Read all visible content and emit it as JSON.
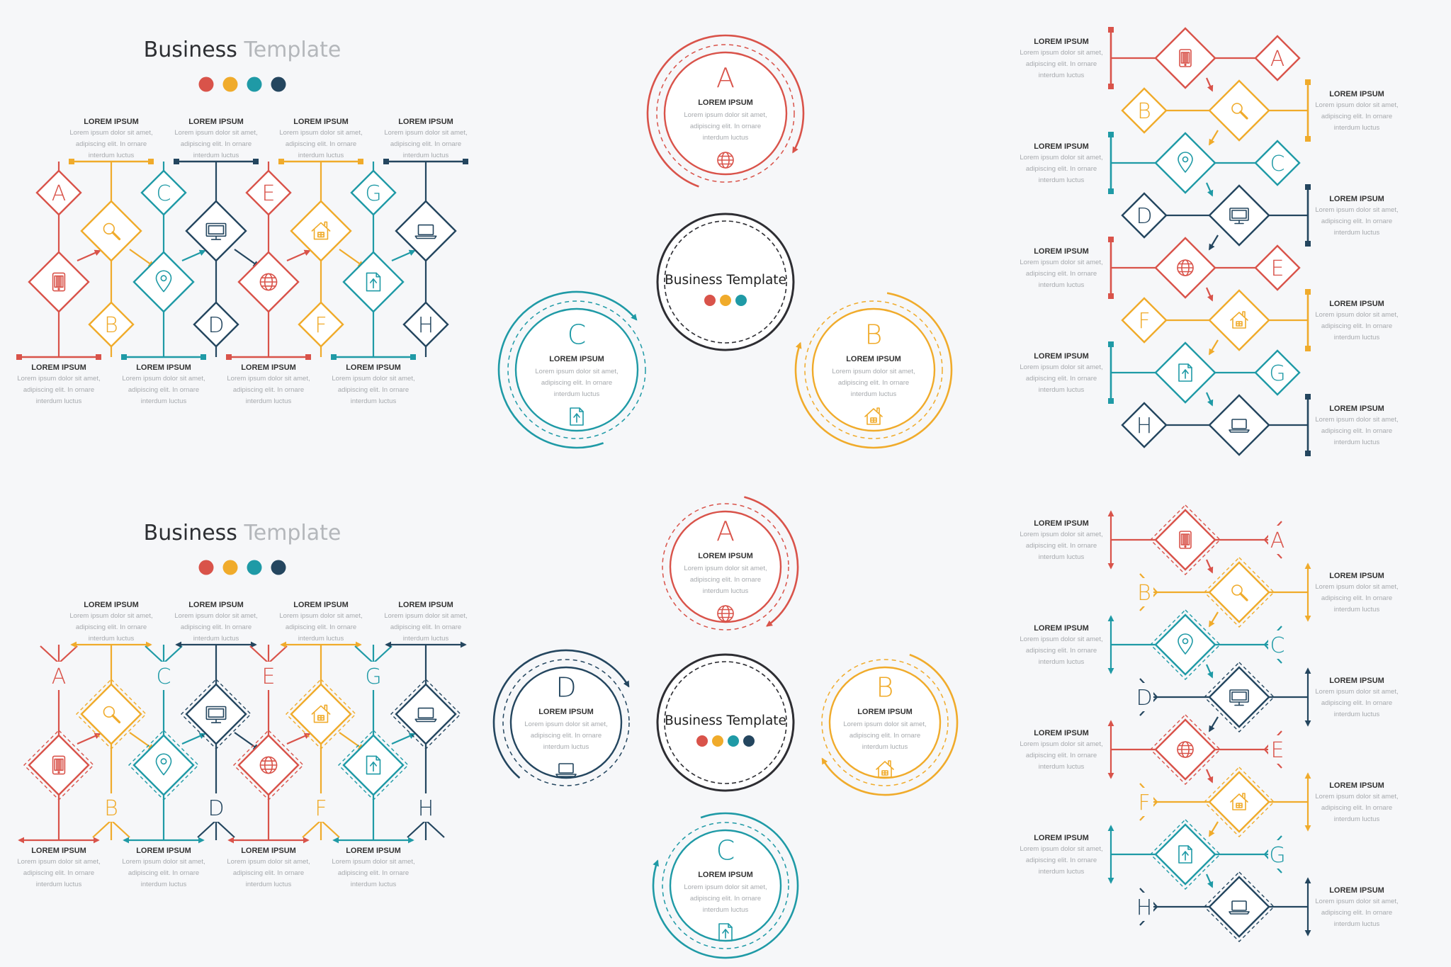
{
  "colors": {
    "red": "#d9534a",
    "orange": "#f0ab2b",
    "teal": "#1f9aa6",
    "navy": "#24465f",
    "dark": "#2e2e33",
    "title_light": "#b4b7bb",
    "text_gray": "#a6a9ad",
    "background": "#f6f7f9"
  },
  "title": {
    "word1": "Business",
    "word2": "Template",
    "combined": "Business Template"
  },
  "lorem": {
    "heading": "LOREM IPSUM",
    "line1": "Lorem ipsum dolor sit amet,",
    "line2": "adipiscing elit. In ornare",
    "line3": "interdum luctus"
  },
  "letters": [
    "A",
    "B",
    "C",
    "D",
    "E",
    "F",
    "G",
    "H"
  ],
  "icons": [
    "tablet-icon",
    "search-icon",
    "map-pin-icon",
    "monitor-icon",
    "globe-icon",
    "house-icon",
    "upload-file-icon",
    "laptop-icon"
  ],
  "item_colors": [
    "red",
    "orange",
    "teal",
    "navy",
    "red",
    "orange",
    "teal",
    "navy"
  ],
  "circle_diagram_1": {
    "center": "Business Template",
    "dots": [
      "red",
      "orange",
      "teal"
    ],
    "items": [
      {
        "letter": "A",
        "color": "red",
        "icon": "globe-icon"
      },
      {
        "letter": "B",
        "color": "orange",
        "icon": "house-icon"
      },
      {
        "letter": "C",
        "color": "teal",
        "icon": "upload-file-icon"
      }
    ]
  },
  "circle_diagram_2": {
    "center": "Business Template",
    "dots": [
      "red",
      "orange",
      "teal",
      "navy"
    ],
    "items": [
      {
        "letter": "A",
        "color": "red",
        "icon": "globe-icon"
      },
      {
        "letter": "B",
        "color": "orange",
        "icon": "house-icon"
      },
      {
        "letter": "C",
        "color": "teal",
        "icon": "upload-file-icon"
      },
      {
        "letter": "D",
        "color": "navy",
        "icon": "laptop-icon"
      }
    ]
  },
  "header_dots": [
    "red",
    "orange",
    "teal",
    "navy"
  ]
}
